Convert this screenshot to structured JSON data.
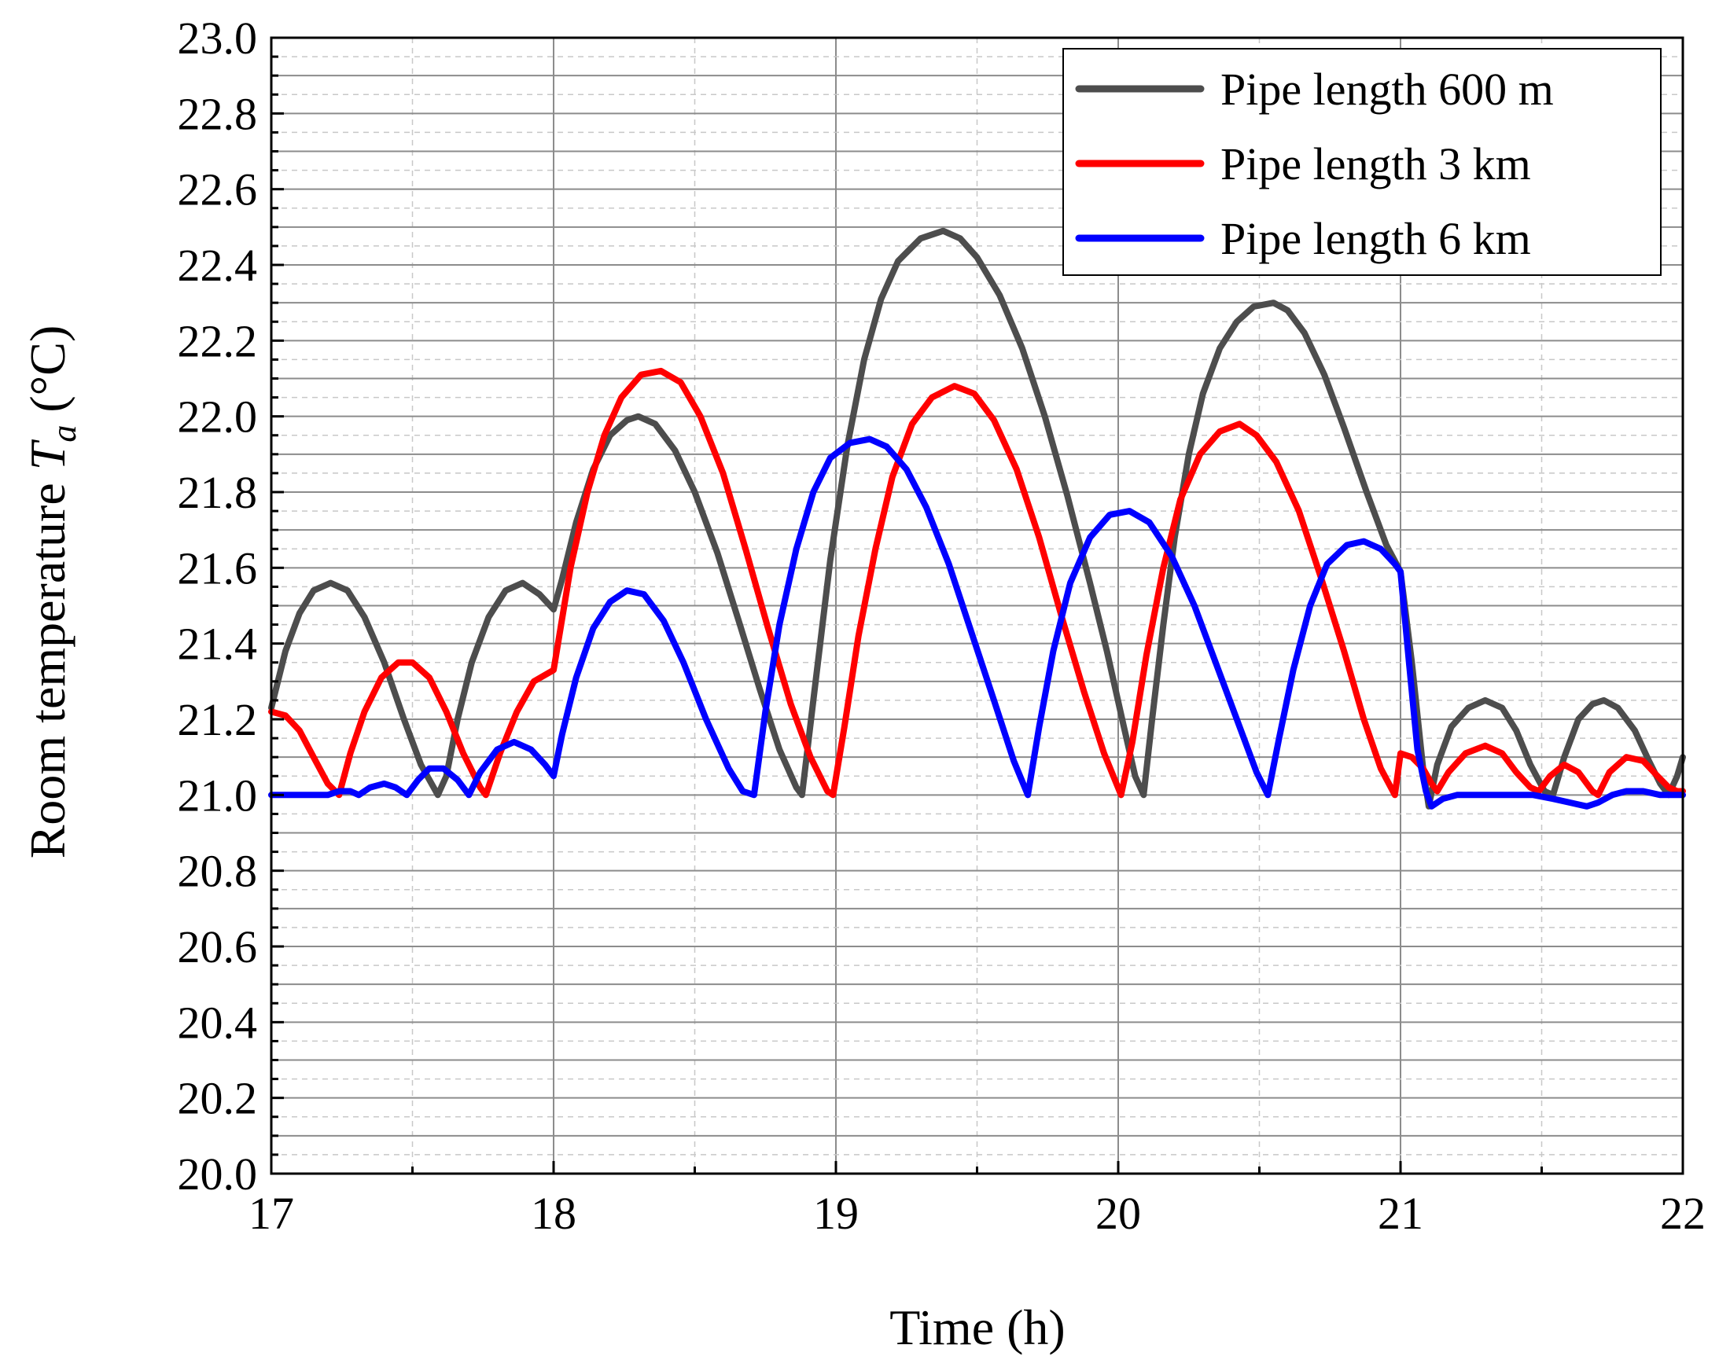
{
  "chart_data": {
    "type": "line",
    "title": "",
    "xlabel": "Time (h)",
    "ylabel_main": "Room temperature ",
    "ylabel_symbol": "T",
    "ylabel_subscript": "a",
    "ylabel_unit": " (°C)",
    "xlim": [
      17,
      22
    ],
    "ylim": [
      20.0,
      23.0
    ],
    "x_ticks": [
      "17",
      "18",
      "19",
      "20",
      "21",
      "22"
    ],
    "y_ticks": [
      "20.0",
      "20.2",
      "20.4",
      "20.6",
      "20.8",
      "21.0",
      "21.2",
      "21.4",
      "21.6",
      "21.8",
      "22.0",
      "22.2",
      "22.4",
      "22.6",
      "22.8",
      "23.0"
    ],
    "grid": true,
    "legend_position": "top-right",
    "series": [
      {
        "name": "Pipe length 600 m",
        "color": "#4d4d4d",
        "points": [
          [
            17.0,
            21.23
          ],
          [
            17.05,
            21.38
          ],
          [
            17.1,
            21.48
          ],
          [
            17.15,
            21.54
          ],
          [
            17.21,
            21.56
          ],
          [
            17.27,
            21.54
          ],
          [
            17.33,
            21.47
          ],
          [
            17.4,
            21.35
          ],
          [
            17.47,
            21.2
          ],
          [
            17.53,
            21.08
          ],
          [
            17.59,
            21.0
          ],
          [
            17.62,
            21.05
          ],
          [
            17.66,
            21.2
          ],
          [
            17.71,
            21.35
          ],
          [
            17.77,
            21.47
          ],
          [
            17.83,
            21.54
          ],
          [
            17.89,
            21.56
          ],
          [
            17.95,
            21.53
          ],
          [
            18.0,
            21.49
          ],
          [
            18.03,
            21.57
          ],
          [
            18.08,
            21.72
          ],
          [
            18.14,
            21.86
          ],
          [
            18.2,
            21.95
          ],
          [
            18.26,
            21.99
          ],
          [
            18.3,
            22.0
          ],
          [
            18.36,
            21.98
          ],
          [
            18.43,
            21.91
          ],
          [
            18.5,
            21.8
          ],
          [
            18.58,
            21.64
          ],
          [
            18.66,
            21.45
          ],
          [
            18.73,
            21.28
          ],
          [
            18.8,
            21.12
          ],
          [
            18.86,
            21.02
          ],
          [
            18.88,
            21.0
          ],
          [
            18.92,
            21.25
          ],
          [
            18.98,
            21.62
          ],
          [
            19.04,
            21.92
          ],
          [
            19.1,
            22.15
          ],
          [
            19.16,
            22.31
          ],
          [
            19.22,
            22.41
          ],
          [
            19.3,
            22.47
          ],
          [
            19.38,
            22.49
          ],
          [
            19.44,
            22.47
          ],
          [
            19.5,
            22.42
          ],
          [
            19.58,
            22.32
          ],
          [
            19.66,
            22.18
          ],
          [
            19.74,
            22.0
          ],
          [
            19.82,
            21.79
          ],
          [
            19.9,
            21.56
          ],
          [
            19.96,
            21.38
          ],
          [
            20.02,
            21.18
          ],
          [
            20.06,
            21.05
          ],
          [
            20.09,
            21.0
          ],
          [
            20.12,
            21.2
          ],
          [
            20.16,
            21.45
          ],
          [
            20.2,
            21.68
          ],
          [
            20.25,
            21.9
          ],
          [
            20.3,
            22.06
          ],
          [
            20.36,
            22.18
          ],
          [
            20.42,
            22.25
          ],
          [
            20.48,
            22.29
          ],
          [
            20.55,
            22.3
          ],
          [
            20.6,
            22.28
          ],
          [
            20.66,
            22.22
          ],
          [
            20.73,
            22.11
          ],
          [
            20.8,
            21.97
          ],
          [
            20.88,
            21.8
          ],
          [
            20.95,
            21.66
          ],
          [
            21.0,
            21.59
          ],
          [
            21.04,
            21.35
          ],
          [
            21.08,
            21.07
          ],
          [
            21.1,
            20.97
          ],
          [
            21.13,
            21.08
          ],
          [
            21.18,
            21.18
          ],
          [
            21.24,
            21.23
          ],
          [
            21.3,
            21.25
          ],
          [
            21.36,
            21.23
          ],
          [
            21.41,
            21.17
          ],
          [
            21.46,
            21.08
          ],
          [
            21.51,
            21.01
          ],
          [
            21.54,
            21.0
          ],
          [
            21.58,
            21.1
          ],
          [
            21.63,
            21.2
          ],
          [
            21.68,
            21.24
          ],
          [
            21.72,
            21.25
          ],
          [
            21.77,
            21.23
          ],
          [
            21.83,
            21.17
          ],
          [
            21.88,
            21.09
          ],
          [
            21.92,
            21.03
          ],
          [
            21.95,
            21.0
          ],
          [
            21.98,
            21.05
          ],
          [
            22.0,
            21.1
          ]
        ]
      },
      {
        "name": "Pipe length 3 km",
        "color": "#ff0000",
        "points": [
          [
            17.0,
            21.22
          ],
          [
            17.05,
            21.21
          ],
          [
            17.1,
            21.17
          ],
          [
            17.15,
            21.1
          ],
          [
            17.2,
            21.03
          ],
          [
            17.24,
            21.0
          ],
          [
            17.28,
            21.11
          ],
          [
            17.33,
            21.22
          ],
          [
            17.39,
            21.31
          ],
          [
            17.45,
            21.35
          ],
          [
            17.5,
            21.35
          ],
          [
            17.56,
            21.31
          ],
          [
            17.62,
            21.22
          ],
          [
            17.68,
            21.11
          ],
          [
            17.74,
            21.02
          ],
          [
            17.76,
            21.0
          ],
          [
            17.81,
            21.11
          ],
          [
            17.87,
            21.22
          ],
          [
            17.93,
            21.3
          ],
          [
            18.0,
            21.33
          ],
          [
            18.02,
            21.42
          ],
          [
            18.06,
            21.6
          ],
          [
            18.12,
            21.8
          ],
          [
            18.18,
            21.95
          ],
          [
            18.24,
            22.05
          ],
          [
            18.31,
            22.11
          ],
          [
            18.38,
            22.12
          ],
          [
            18.45,
            22.09
          ],
          [
            18.52,
            22.0
          ],
          [
            18.6,
            21.85
          ],
          [
            18.68,
            21.65
          ],
          [
            18.76,
            21.44
          ],
          [
            18.84,
            21.24
          ],
          [
            18.91,
            21.1
          ],
          [
            18.97,
            21.01
          ],
          [
            18.99,
            21.0
          ],
          [
            19.03,
            21.18
          ],
          [
            19.08,
            21.42
          ],
          [
            19.14,
            21.65
          ],
          [
            19.2,
            21.84
          ],
          [
            19.27,
            21.98
          ],
          [
            19.34,
            22.05
          ],
          [
            19.42,
            22.08
          ],
          [
            19.49,
            22.06
          ],
          [
            19.56,
            21.99
          ],
          [
            19.64,
            21.86
          ],
          [
            19.72,
            21.68
          ],
          [
            19.8,
            21.47
          ],
          [
            19.88,
            21.27
          ],
          [
            19.95,
            21.11
          ],
          [
            20.01,
            21.0
          ],
          [
            20.05,
            21.14
          ],
          [
            20.1,
            21.37
          ],
          [
            20.16,
            21.6
          ],
          [
            20.22,
            21.78
          ],
          [
            20.29,
            21.9
          ],
          [
            20.36,
            21.96
          ],
          [
            20.43,
            21.98
          ],
          [
            20.49,
            21.95
          ],
          [
            20.56,
            21.88
          ],
          [
            20.64,
            21.75
          ],
          [
            20.72,
            21.57
          ],
          [
            20.8,
            21.38
          ],
          [
            20.87,
            21.2
          ],
          [
            20.93,
            21.07
          ],
          [
            20.98,
            21.0
          ],
          [
            21.0,
            21.11
          ],
          [
            21.04,
            21.1
          ],
          [
            21.08,
            21.07
          ],
          [
            21.11,
            21.03
          ],
          [
            21.13,
            21.01
          ],
          [
            21.17,
            21.06
          ],
          [
            21.23,
            21.11
          ],
          [
            21.3,
            21.13
          ],
          [
            21.36,
            21.11
          ],
          [
            21.41,
            21.06
          ],
          [
            21.46,
            21.02
          ],
          [
            21.49,
            21.01
          ],
          [
            21.53,
            21.05
          ],
          [
            21.58,
            21.08
          ],
          [
            21.63,
            21.06
          ],
          [
            21.68,
            21.01
          ],
          [
            21.7,
            21.0
          ],
          [
            21.74,
            21.06
          ],
          [
            21.8,
            21.1
          ],
          [
            21.86,
            21.09
          ],
          [
            21.91,
            21.05
          ],
          [
            21.95,
            21.02
          ],
          [
            21.98,
            21.01
          ],
          [
            22.0,
            21.01
          ]
        ]
      },
      {
        "name": "Pipe length 6 km",
        "color": "#0000ff",
        "points": [
          [
            17.0,
            21.0
          ],
          [
            17.05,
            21.0
          ],
          [
            17.1,
            21.0
          ],
          [
            17.15,
            21.0
          ],
          [
            17.2,
            21.0
          ],
          [
            17.24,
            21.01
          ],
          [
            17.28,
            21.01
          ],
          [
            17.31,
            21.0
          ],
          [
            17.35,
            21.02
          ],
          [
            17.4,
            21.03
          ],
          [
            17.44,
            21.02
          ],
          [
            17.48,
            21.0
          ],
          [
            17.52,
            21.04
          ],
          [
            17.56,
            21.07
          ],
          [
            17.61,
            21.07
          ],
          [
            17.66,
            21.04
          ],
          [
            17.7,
            21.0
          ],
          [
            17.74,
            21.06
          ],
          [
            17.8,
            21.12
          ],
          [
            17.86,
            21.14
          ],
          [
            17.92,
            21.12
          ],
          [
            17.97,
            21.08
          ],
          [
            18.0,
            21.05
          ],
          [
            18.03,
            21.16
          ],
          [
            18.08,
            21.31
          ],
          [
            18.14,
            21.44
          ],
          [
            18.2,
            21.51
          ],
          [
            18.26,
            21.54
          ],
          [
            18.32,
            21.53
          ],
          [
            18.39,
            21.46
          ],
          [
            18.46,
            21.35
          ],
          [
            18.54,
            21.2
          ],
          [
            18.62,
            21.07
          ],
          [
            18.67,
            21.01
          ],
          [
            18.71,
            21.0
          ],
          [
            18.75,
            21.22
          ],
          [
            18.8,
            21.45
          ],
          [
            18.86,
            21.65
          ],
          [
            18.92,
            21.8
          ],
          [
            18.98,
            21.89
          ],
          [
            19.05,
            21.93
          ],
          [
            19.12,
            21.94
          ],
          [
            19.18,
            21.92
          ],
          [
            19.25,
            21.86
          ],
          [
            19.32,
            21.76
          ],
          [
            19.4,
            21.61
          ],
          [
            19.48,
            21.43
          ],
          [
            19.56,
            21.25
          ],
          [
            19.63,
            21.09
          ],
          [
            19.68,
            21.0
          ],
          [
            19.72,
            21.18
          ],
          [
            19.77,
            21.38
          ],
          [
            19.83,
            21.56
          ],
          [
            19.9,
            21.68
          ],
          [
            19.97,
            21.74
          ],
          [
            20.04,
            21.75
          ],
          [
            20.11,
            21.72
          ],
          [
            20.19,
            21.63
          ],
          [
            20.27,
            21.5
          ],
          [
            20.35,
            21.34
          ],
          [
            20.43,
            21.18
          ],
          [
            20.49,
            21.06
          ],
          [
            20.53,
            21.0
          ],
          [
            20.57,
            21.15
          ],
          [
            20.62,
            21.33
          ],
          [
            20.68,
            21.5
          ],
          [
            20.74,
            21.61
          ],
          [
            20.81,
            21.66
          ],
          [
            20.87,
            21.67
          ],
          [
            20.93,
            21.65
          ],
          [
            20.98,
            21.61
          ],
          [
            21.0,
            21.59
          ],
          [
            21.03,
            21.35
          ],
          [
            21.06,
            21.12
          ],
          [
            21.09,
            21.01
          ],
          [
            21.11,
            20.97
          ],
          [
            21.15,
            20.99
          ],
          [
            21.2,
            21.0
          ],
          [
            21.26,
            21.0
          ],
          [
            21.33,
            21.0
          ],
          [
            21.4,
            21.0
          ],
          [
            21.47,
            21.0
          ],
          [
            21.54,
            20.99
          ],
          [
            21.6,
            20.98
          ],
          [
            21.66,
            20.97
          ],
          [
            21.7,
            20.98
          ],
          [
            21.75,
            21.0
          ],
          [
            21.8,
            21.01
          ],
          [
            21.86,
            21.01
          ],
          [
            21.92,
            21.0
          ],
          [
            21.97,
            21.0
          ],
          [
            22.0,
            21.0
          ]
        ]
      }
    ]
  }
}
